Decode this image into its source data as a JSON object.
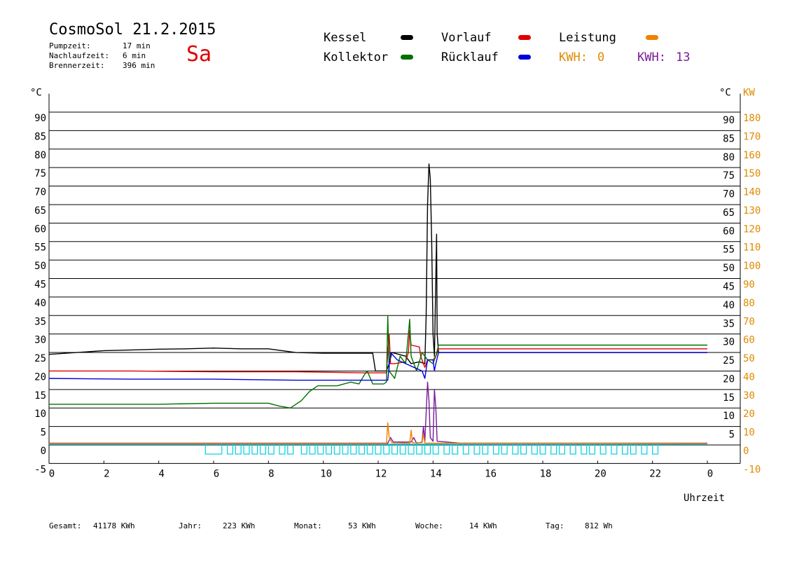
{
  "header": {
    "title": "CosmoSol 21.2.2015",
    "weekday": "Sa",
    "stats": [
      {
        "label": "Pumpzeit:",
        "value": "17 min"
      },
      {
        "label": "Nachlaufzeit:",
        "value": "6 min"
      },
      {
        "label": "Brennerzeit:",
        "value": "396 min"
      }
    ]
  },
  "legend": {
    "kessel": {
      "label": "Kessel",
      "color": "#000000"
    },
    "vorlauf": {
      "label": "Vorlauf",
      "color": "#e00000"
    },
    "leistung": {
      "label": "Leistung",
      "color": "#f08000"
    },
    "kollektor": {
      "label": "Kollektor",
      "color": "#007000"
    },
    "ruecklauf": {
      "label": "Rücklauf",
      "color": "#0000e0"
    },
    "kwh_a": {
      "label": "KWH:",
      "value": "0",
      "color": "#e08a00"
    },
    "kwh_b": {
      "label": "KWH:",
      "value": "13",
      "color": "#7a1a9a"
    }
  },
  "footer": {
    "gesamt": {
      "label": "Gesamt:",
      "value": "41178 KWh"
    },
    "jahr": {
      "label": "Jahr:",
      "value": "223 KWh"
    },
    "monat": {
      "label": "Monat:",
      "value": "53 KWh"
    },
    "woche": {
      "label": "Woche:",
      "value": "14 KWh"
    },
    "tag": {
      "label": "Tag:",
      "value": "812 Wh"
    }
  },
  "chart_data": {
    "type": "line",
    "xlabel": "Uhrzeit",
    "xlim": [
      0,
      24
    ],
    "x_ticks": [
      "0",
      "2",
      "4",
      "6",
      "8",
      "10",
      "12",
      "14",
      "16",
      "18",
      "20",
      "22",
      "0"
    ],
    "ylim": [
      -5,
      95
    ],
    "y_left_unit": "°C",
    "y_left_ticks": [
      "90",
      "85",
      "80",
      "75",
      "70",
      "65",
      "60",
      "55",
      "50",
      "45",
      "40",
      "35",
      "30",
      "25",
      "20",
      "15",
      "10",
      "5",
      "0",
      "-5"
    ],
    "y_right_unit": "°C",
    "y_right_ticks": [
      "90",
      "85",
      "80",
      "75",
      "70",
      "65",
      "60",
      "55",
      "50",
      "45",
      "40",
      "35",
      "30",
      "25",
      "20",
      "15",
      "10",
      "5"
    ],
    "y_right2_unit": "KW",
    "y_right2_ticks": [
      "180",
      "170",
      "160",
      "150",
      "140",
      "130",
      "120",
      "110",
      "100",
      "90",
      "80",
      "70",
      "60",
      "50",
      "40",
      "30",
      "20",
      "10",
      "0",
      "-10"
    ],
    "grid": true,
    "series": [
      {
        "name": "Kessel",
        "color": "#000000",
        "points": [
          [
            0,
            24.5
          ],
          [
            1,
            25
          ],
          [
            2,
            25.5
          ],
          [
            3,
            25.7
          ],
          [
            4,
            25.9
          ],
          [
            5,
            26
          ],
          [
            6,
            26.2
          ],
          [
            7,
            26
          ],
          [
            8,
            26
          ],
          [
            8.5,
            25.5
          ],
          [
            9,
            25
          ],
          [
            10,
            24.8
          ],
          [
            11,
            24.8
          ],
          [
            11.8,
            24.8
          ],
          [
            11.9,
            20
          ],
          [
            12.3,
            20
          ],
          [
            12.4,
            22
          ],
          [
            12.5,
            25
          ],
          [
            13.0,
            24
          ],
          [
            13.2,
            22
          ],
          [
            13.5,
            22.5
          ],
          [
            13.7,
            22
          ],
          [
            13.75,
            35
          ],
          [
            13.8,
            65
          ],
          [
            13.85,
            76
          ],
          [
            13.9,
            72
          ],
          [
            13.95,
            55
          ],
          [
            14.0,
            30
          ],
          [
            14.05,
            24
          ],
          [
            14.1,
            45
          ],
          [
            14.13,
            57
          ],
          [
            14.15,
            30
          ],
          [
            14.2,
            25
          ],
          [
            24,
            25
          ]
        ]
      },
      {
        "name": "Vorlauf",
        "color": "#e00000",
        "points": [
          [
            0,
            20
          ],
          [
            3,
            20
          ],
          [
            6,
            19.8
          ],
          [
            9,
            19.8
          ],
          [
            11.5,
            19.5
          ],
          [
            11.9,
            19.5
          ],
          [
            12.3,
            19.5
          ],
          [
            12.4,
            30
          ],
          [
            12.45,
            22
          ],
          [
            12.6,
            22
          ],
          [
            13.0,
            22.5
          ],
          [
            13.1,
            25
          ],
          [
            13.15,
            31
          ],
          [
            13.2,
            27
          ],
          [
            13.5,
            26.5
          ],
          [
            13.55,
            24
          ],
          [
            13.7,
            21
          ],
          [
            13.8,
            23
          ],
          [
            14.0,
            23
          ],
          [
            14.1,
            24
          ],
          [
            14.2,
            26
          ],
          [
            24,
            26
          ]
        ]
      },
      {
        "name": "Kollektor",
        "color": "#007000",
        "points": [
          [
            0,
            11
          ],
          [
            2,
            11
          ],
          [
            4,
            11
          ],
          [
            6,
            11.3
          ],
          [
            8,
            11.3
          ],
          [
            8.4,
            10.5
          ],
          [
            8.8,
            10
          ],
          [
            9.2,
            12
          ],
          [
            9.5,
            14.5
          ],
          [
            9.8,
            16
          ],
          [
            10.5,
            16
          ],
          [
            11,
            17
          ],
          [
            11.3,
            16.5
          ],
          [
            11.5,
            19
          ],
          [
            11.6,
            20
          ],
          [
            11.8,
            16.5
          ],
          [
            12.2,
            16.5
          ],
          [
            12.3,
            17
          ],
          [
            12.35,
            35
          ],
          [
            12.4,
            20
          ],
          [
            12.6,
            18
          ],
          [
            12.8,
            24
          ],
          [
            13.0,
            22
          ],
          [
            13.1,
            30
          ],
          [
            13.15,
            34
          ],
          [
            13.2,
            24
          ],
          [
            13.4,
            20
          ],
          [
            13.6,
            25
          ],
          [
            13.8,
            23
          ],
          [
            14.0,
            22
          ],
          [
            14.1,
            24
          ],
          [
            14.2,
            27
          ],
          [
            24,
            27
          ]
        ]
      },
      {
        "name": "Rücklauf",
        "color": "#0000e0",
        "points": [
          [
            0,
            18
          ],
          [
            3,
            17.8
          ],
          [
            6,
            17.8
          ],
          [
            9,
            17.5
          ],
          [
            11,
            17.5
          ],
          [
            12.2,
            17.5
          ],
          [
            12.35,
            17.5
          ],
          [
            12.45,
            25
          ],
          [
            12.7,
            23
          ],
          [
            13.0,
            22
          ],
          [
            13.3,
            21
          ],
          [
            13.6,
            20
          ],
          [
            13.7,
            18
          ],
          [
            13.8,
            23
          ],
          [
            14.0,
            23
          ],
          [
            14.05,
            20
          ],
          [
            14.1,
            22
          ],
          [
            14.2,
            25
          ],
          [
            24,
            25
          ]
        ]
      },
      {
        "name": "KWH: 13",
        "color": "#7a1a9a",
        "points": [
          [
            0,
            0.5
          ],
          [
            12.35,
            0.5
          ],
          [
            12.45,
            2
          ],
          [
            12.55,
            0.8
          ],
          [
            13.2,
            0.8
          ],
          [
            13.3,
            2
          ],
          [
            13.4,
            0.5
          ],
          [
            13.6,
            0.8
          ],
          [
            13.65,
            5
          ],
          [
            13.7,
            1
          ],
          [
            13.8,
            17
          ],
          [
            13.85,
            12
          ],
          [
            13.9,
            2
          ],
          [
            14.0,
            1
          ],
          [
            14.05,
            15
          ],
          [
            14.1,
            10
          ],
          [
            14.15,
            1
          ],
          [
            15,
            0.5
          ],
          [
            24,
            0.5
          ]
        ]
      },
      {
        "name": "Leistung",
        "color": "#f08000",
        "points": [
          [
            0,
            0.4
          ],
          [
            12.3,
            0.4
          ],
          [
            12.35,
            6
          ],
          [
            12.4,
            2
          ],
          [
            12.5,
            0.6
          ],
          [
            13.15,
            0.5
          ],
          [
            13.2,
            4
          ],
          [
            13.25,
            0.6
          ],
          [
            13.6,
            0.6
          ],
          [
            13.65,
            3
          ],
          [
            13.7,
            0.5
          ],
          [
            24,
            0.4
          ]
        ]
      }
    ],
    "pump_segments": [
      [
        5.7,
        6.3
      ],
      [
        6.5,
        6.7
      ],
      [
        6.8,
        7.0
      ],
      [
        7.1,
        7.3
      ],
      [
        7.4,
        7.6
      ],
      [
        7.7,
        7.9
      ],
      [
        8.0,
        8.2
      ],
      [
        8.4,
        8.6
      ],
      [
        8.7,
        8.9
      ],
      [
        9.2,
        9.4
      ],
      [
        9.5,
        9.7
      ],
      [
        9.8,
        10.0
      ],
      [
        10.1,
        10.3
      ],
      [
        10.4,
        10.6
      ],
      [
        10.7,
        10.9
      ],
      [
        11.0,
        11.2
      ],
      [
        11.3,
        11.5
      ],
      [
        11.6,
        11.8
      ],
      [
        11.9,
        12.1
      ],
      [
        12.2,
        12.4
      ],
      [
        12.5,
        12.7
      ],
      [
        12.8,
        13.0
      ],
      [
        13.1,
        13.3
      ],
      [
        13.4,
        13.6
      ],
      [
        13.7,
        13.9
      ],
      [
        14.0,
        14.2
      ],
      [
        14.4,
        14.6
      ],
      [
        14.7,
        14.9
      ],
      [
        15.1,
        15.3
      ],
      [
        15.5,
        15.7
      ],
      [
        15.8,
        16.0
      ],
      [
        16.2,
        16.4
      ],
      [
        16.5,
        16.7
      ],
      [
        16.9,
        17.1
      ],
      [
        17.2,
        17.4
      ],
      [
        17.6,
        17.8
      ],
      [
        17.9,
        18.1
      ],
      [
        18.3,
        18.5
      ],
      [
        18.6,
        18.8
      ],
      [
        19.0,
        19.2
      ],
      [
        19.4,
        19.6
      ],
      [
        19.7,
        19.9
      ],
      [
        20.1,
        20.3
      ],
      [
        20.5,
        20.7
      ],
      [
        20.9,
        21.1
      ],
      [
        21.2,
        21.4
      ],
      [
        21.6,
        21.8
      ],
      [
        22.0,
        22.2
      ]
    ]
  }
}
